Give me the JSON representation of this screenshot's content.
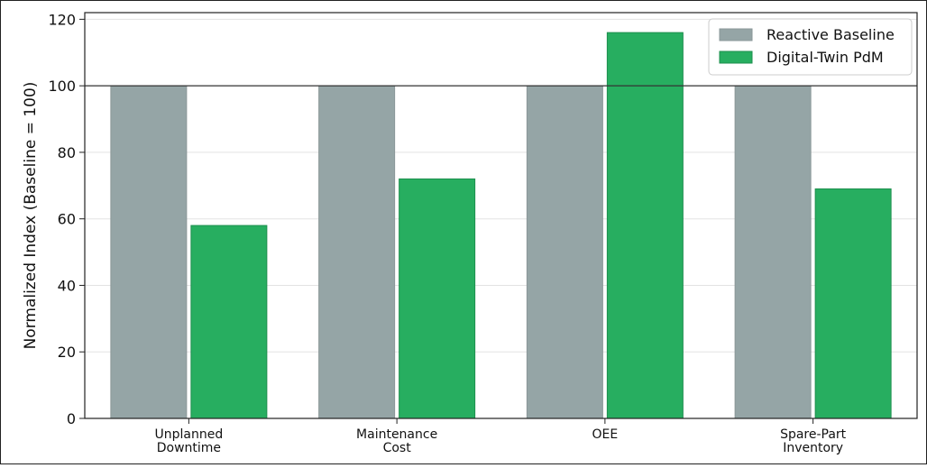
{
  "chart_data": {
    "type": "bar",
    "categories": [
      "Unplanned\nDowntime",
      "Maintenance\nCost",
      "OEE",
      "Spare-Part\nInventory"
    ],
    "series": [
      {
        "name": "Reactive Baseline",
        "values": [
          100,
          100,
          100,
          100
        ],
        "color": "#95a5a6"
      },
      {
        "name": "Digital-Twin PdM",
        "values": [
          58,
          72,
          116,
          69
        ],
        "color": "#27ae60"
      }
    ],
    "ylabel": "Normalized Index (Baseline = 100)",
    "ylim": [
      0,
      122
    ],
    "yticks": [
      0,
      20,
      40,
      60,
      80,
      100,
      120
    ],
    "reference_line": 100,
    "grid": "horizontal",
    "legend_position": "top-right"
  }
}
